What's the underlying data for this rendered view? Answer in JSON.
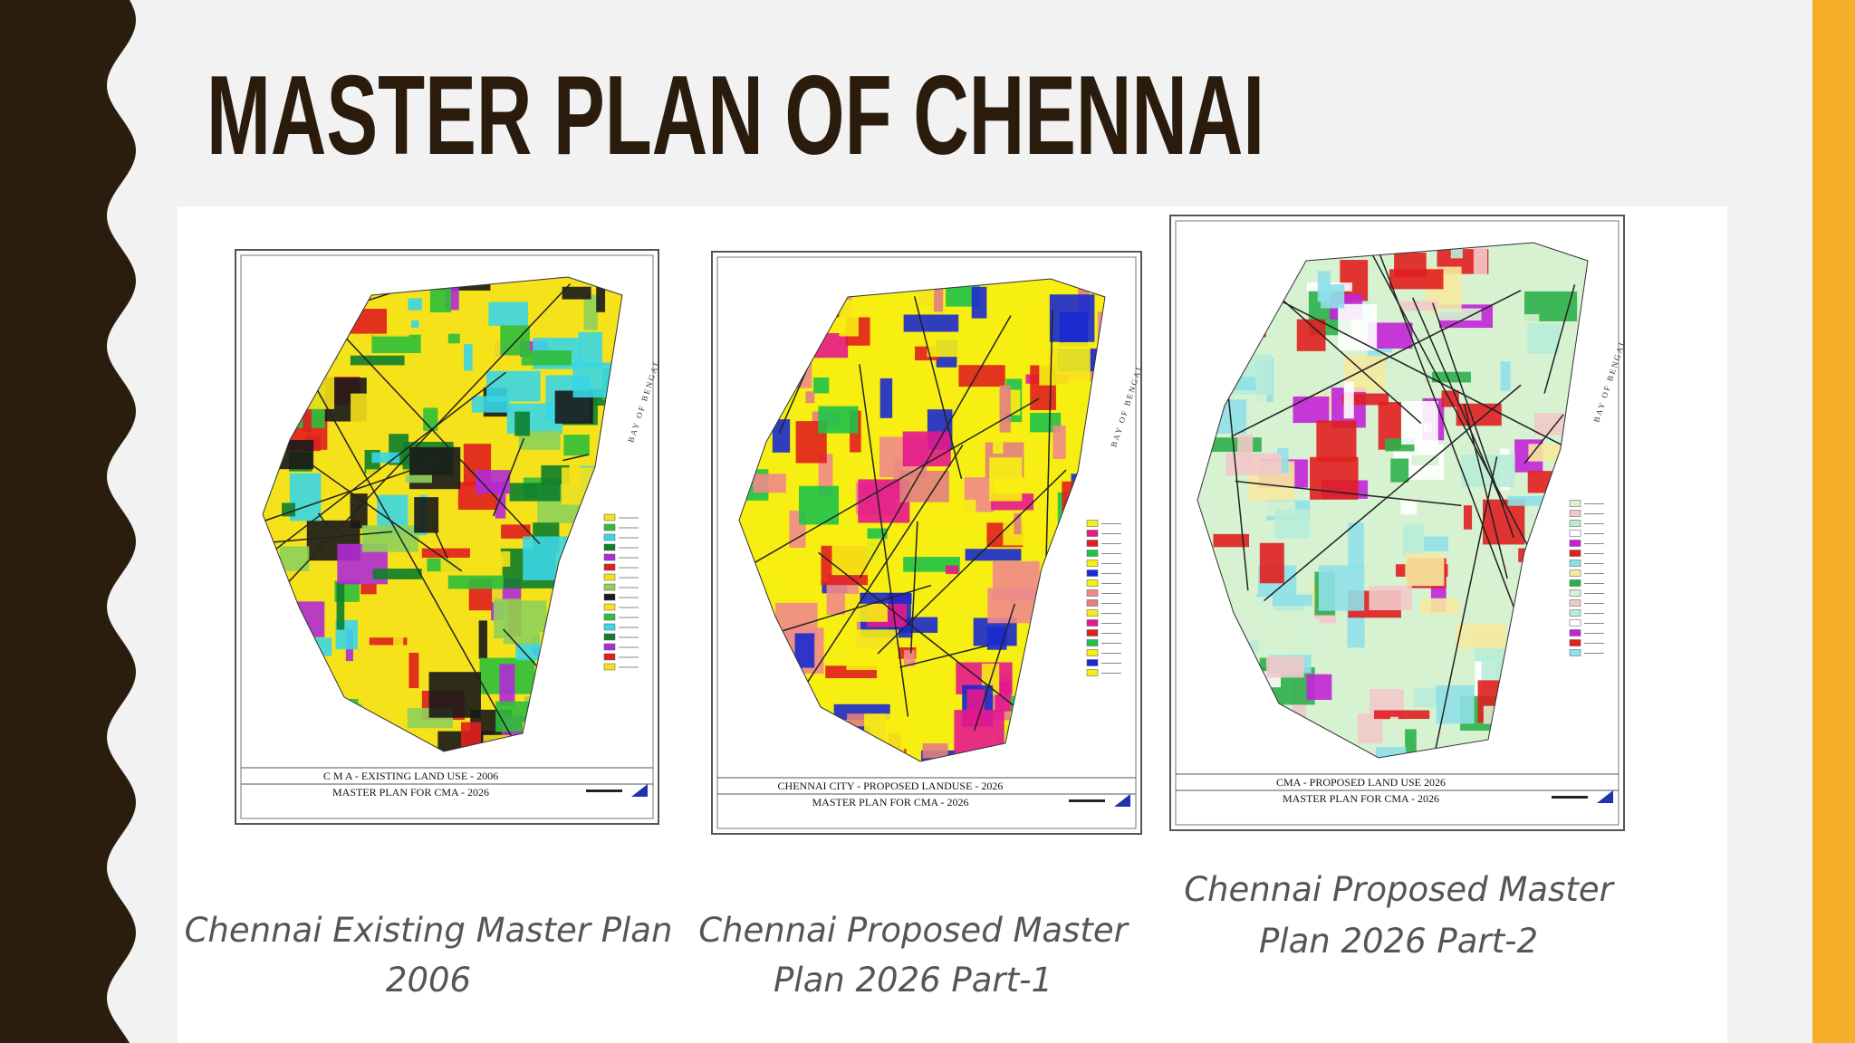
{
  "title": "MASTER PLAN OF CHENNAI",
  "maps": [
    {
      "label_lines": [
        "C M A  -  EXISTING LAND USE - 2006",
        "MASTER PLAN FOR CMA  -  2026"
      ],
      "sea_label": "BAY OF BENGAL",
      "caption_lines": [
        "Chennai Existing Master Plan",
        "2006"
      ]
    },
    {
      "label_lines": [
        "CHENNAI CITY - PROPOSED LANDUSE - 2026",
        "MASTER PLAN FOR CMA  -  2026"
      ],
      "sea_label": "BAY OF BENGAL",
      "caption_lines": [
        "Chennai Proposed Master",
        "Plan 2026 Part-1"
      ]
    },
    {
      "label_lines": [
        "CMA - PROPOSED LAND USE 2026",
        "MASTER PLAN FOR CMA - 2026"
      ],
      "sea_label": "BAY OF BENGAL",
      "caption_lines": [
        "Chennai Proposed Master",
        "Plan 2026 Part-2"
      ]
    }
  ]
}
